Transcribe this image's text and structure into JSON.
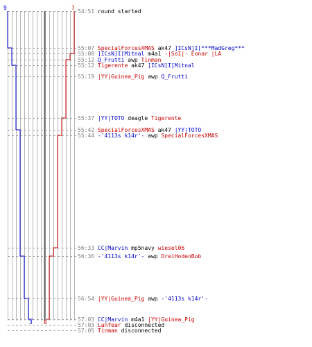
{
  "colors": {
    "blue_team": "#0000cc",
    "red_team": "#cc0000",
    "timestamp": "#808080",
    "grid": "#b4b4b4",
    "center": "#606060"
  },
  "scores": {
    "blue_start": "9",
    "red_start": "7",
    "blue_end": "3",
    "red_end": "0"
  },
  "events": [
    {
      "time": "54:51",
      "t": [
        {
          "c": "plain",
          "s": "round started"
        }
      ]
    },
    {
      "time": "55:07",
      "t": [
        {
          "c": "rd",
          "s": "SpecialForcesXMAS"
        },
        {
          "c": "plain",
          "s": " ak47 "
        },
        {
          "c": "bl",
          "s": "]ICsN]I[***MadGreg***"
        }
      ]
    },
    {
      "time": "55:08",
      "t": [
        {
          "c": "bl",
          "s": "]ICsN]I[Mitnal"
        },
        {
          "c": "plain",
          "s": " m4a1 "
        },
        {
          "c": "rd",
          "s": "-|SoI|- Eonar |LA"
        }
      ]
    },
    {
      "time": "55:12",
      "t": [
        {
          "c": "bl",
          "s": "Q_Frutti"
        },
        {
          "c": "plain",
          "s": " awp "
        },
        {
          "c": "rd",
          "s": "Tinman"
        }
      ]
    },
    {
      "time": "55:12",
      "t": [
        {
          "c": "rd",
          "s": "Tigerente"
        },
        {
          "c": "plain",
          "s": " ak47 "
        },
        {
          "c": "bl",
          "s": "]ICsN]I[Mitnal"
        }
      ]
    },
    {
      "time": "55:19",
      "t": [
        {
          "c": "rd",
          "s": "|YY|Guinea_Pig"
        },
        {
          "c": "plain",
          "s": " awp "
        },
        {
          "c": "bl",
          "s": "Q_Frutti"
        }
      ]
    },
    {
      "time": "55:37",
      "t": [
        {
          "c": "bl",
          "s": "|YY|TOTO"
        },
        {
          "c": "plain",
          "s": " deagle "
        },
        {
          "c": "rd",
          "s": "Tigerente"
        }
      ]
    },
    {
      "time": "55:42",
      "t": [
        {
          "c": "rd",
          "s": "SpecialForcesXMAS"
        },
        {
          "c": "plain",
          "s": " ak47 "
        },
        {
          "c": "bl",
          "s": "|YY|TOTO"
        }
      ]
    },
    {
      "time": "55:44",
      "t": [
        {
          "c": "bl",
          "s": "-'4113s k14r'-"
        },
        {
          "c": "plain",
          "s": " awp "
        },
        {
          "c": "rd",
          "s": "SpecialForcesXMAS"
        }
      ]
    },
    {
      "time": "56:33",
      "t": [
        {
          "c": "bl",
          "s": "CC|Marvin"
        },
        {
          "c": "plain",
          "s": " mp5navy "
        },
        {
          "c": "rd",
          "s": "wiesel06"
        }
      ]
    },
    {
      "time": "56:36",
      "t": [
        {
          "c": "bl",
          "s": "-'4113s k14r'-"
        },
        {
          "c": "plain",
          "s": " awp "
        },
        {
          "c": "rd",
          "s": "DreiHodenBob"
        }
      ]
    },
    {
      "time": "56:54",
      "t": [
        {
          "c": "rd",
          "s": "|YY|Guinea_Pig"
        },
        {
          "c": "plain",
          "s": " awp "
        },
        {
          "c": "bl",
          "s": "-'4113s k14r'-"
        }
      ]
    },
    {
      "time": "57:03",
      "t": [
        {
          "c": "bl",
          "s": "CC|Marvin"
        },
        {
          "c": "plain",
          "s": " m4a1 "
        },
        {
          "c": "rd",
          "s": "|YY|Guinea_Pig"
        }
      ]
    },
    {
      "time": "57:03",
      "t": [
        {
          "c": "rd",
          "s": "Lanfear"
        },
        {
          "c": "plain",
          "s": " disconnected"
        }
      ]
    },
    {
      "time": "57:05",
      "t": [
        {
          "c": "rd",
          "s": "Tinman"
        },
        {
          "c": "plain",
          "s": " disconnected"
        }
      ]
    }
  ]
}
